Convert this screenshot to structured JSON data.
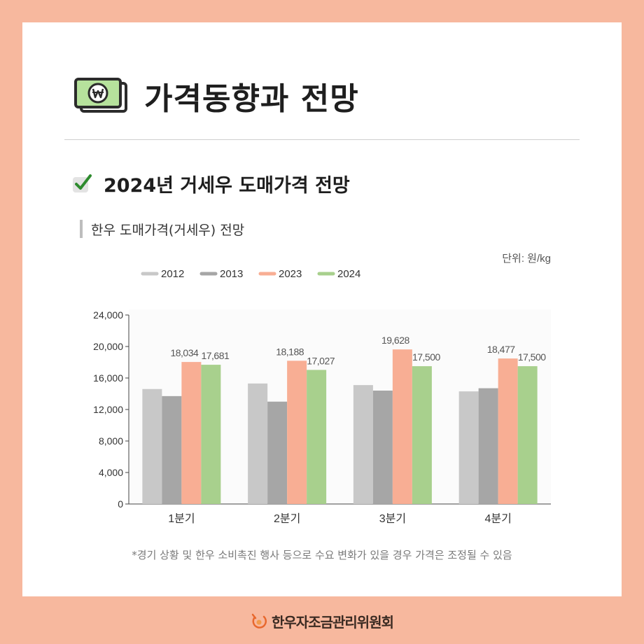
{
  "page": {
    "title": "가격동향과 전망",
    "subtitle": "2024년 거세우 도매가격 전망",
    "chart_label": "한우 도매가격(거세우) 전망",
    "unit": "단위: 원/kg",
    "footnote": "*경기 상황 및 한우 소비촉진 행사 등으로 수요 변화가 있을 경우 가격은 조정될 수 있음",
    "footer": "한우자조금관리위원회",
    "icons": {
      "title": "money-bill-icon",
      "subtitle": "checkbox-icon",
      "footer": "hanwoo-logo-icon"
    }
  },
  "chart_data": {
    "type": "bar",
    "categories": [
      "1분기",
      "2분기",
      "3분기",
      "4분기"
    ],
    "series": [
      {
        "name": "2012",
        "color": "#C8C8C8",
        "values": [
          14600,
          15300,
          15100,
          14300
        ]
      },
      {
        "name": "2013",
        "color": "#A6A6A6",
        "values": [
          13700,
          13000,
          14400,
          14700
        ]
      },
      {
        "name": "2023",
        "color": "#F8AE94",
        "values": [
          18034,
          18188,
          19628,
          18477
        ],
        "labels": [
          "18,034",
          "18,188",
          "19,628",
          "18,477"
        ]
      },
      {
        "name": "2024",
        "color": "#A8D08D",
        "values": [
          17681,
          17027,
          17500,
          17500
        ],
        "labels": [
          "17,681",
          "17,027",
          "17,500",
          "17,500"
        ]
      }
    ],
    "yticks": [
      "0",
      "4,000",
      "8,000",
      "12,000",
      "16,000",
      "20,000",
      "24,000"
    ],
    "ylim": [
      0,
      24000
    ],
    "legend": "top-left",
    "grid": false
  }
}
